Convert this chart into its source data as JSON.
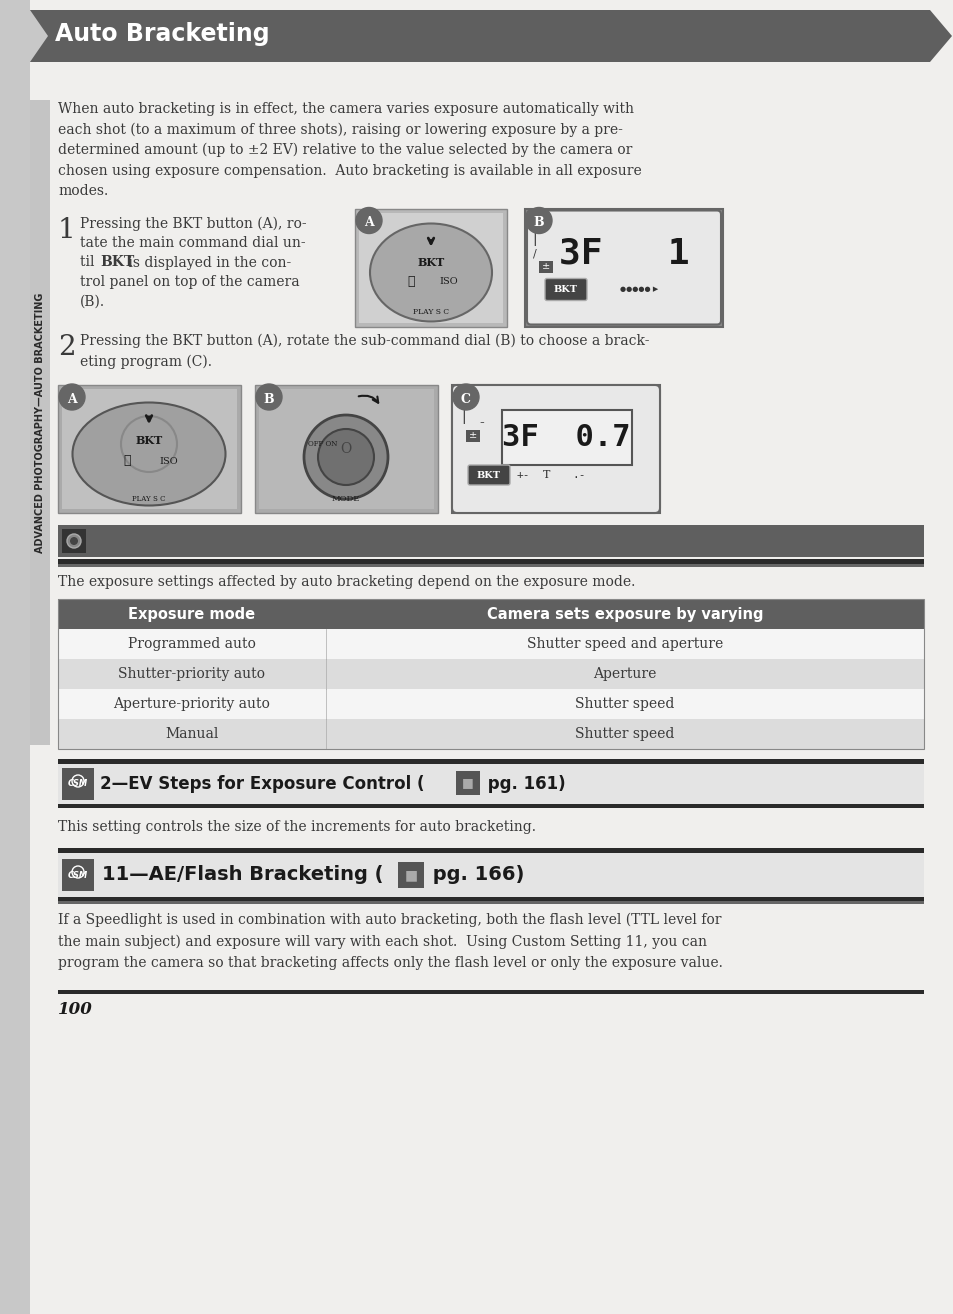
{
  "bg_color": "#c8c8c8",
  "page_bg": "#f0efed",
  "title_text": "Auto Bracketing",
  "title_bg": "#5f5f5f",
  "title_text_color": "#ffffff",
  "sidebar_text": "ADVANCED PHOTOGRAPHY—AUTO BRACKETING",
  "sidebar_bg": "#c0c0c0",
  "body_text_color": "#3a3a3a",
  "intro_lines": [
    "When auto bracketing is in effect, the camera varies exposure automatically with",
    "each shot (to a maximum of three shots), raising or lowering exposure by a pre-",
    "determined amount (up to ±2 EV) relative to the value selected by the camera or",
    "chosen using exposure compensation.  Auto bracketing is available in all exposure",
    "modes."
  ],
  "step1_lines": [
    "Pressing the BKT button (A), ro-",
    "tate the main command dial un-",
    "til ",
    " is displayed in the con-",
    "trol panel on top of the camera",
    "(B)."
  ],
  "step2_line1": "Pressing the BKT button (A), rotate the sub-command dial (B) to choose a brack-",
  "step2_line2": "eting program (C).",
  "table_header": [
    "Exposure mode",
    "Camera sets exposure by varying"
  ],
  "table_header_bg": "#5f5f5f",
  "table_header_color": "#ffffff",
  "table_rows": [
    [
      "Programmed auto",
      "Shutter speed and aperture"
    ],
    [
      "Shutter-priority auto",
      "Aperture"
    ],
    [
      "Aperture-priority auto",
      "Shutter speed"
    ],
    [
      "Manual",
      "Shutter speed"
    ]
  ],
  "table_row_colors": [
    "#f5f5f5",
    "#dcdcdc",
    "#f5f5f5",
    "#dcdcdc"
  ],
  "table_text_color": "#3a3a3a",
  "table_intro": "The exposure settings affected by auto bracketing depend on the exposure mode.",
  "sec1_title": "2—EV Steps for Exposure Control (",
  "sec1_title2": " pg. 161)",
  "sec1_text": "This setting controls the size of the increments for auto bracketing.",
  "sec2_title": "11—AE/Flash Bracketing (",
  "sec2_title2": " pg. 166)",
  "sec2_lines": [
    "If a Speedlight is used in combination with auto bracketing, both the flash level (TTL level for",
    "the main subject) and exposure will vary with each shot.  Using Custom Setting 11, you can",
    "program the camera so that bracketing affects only the flash level or only the exposure value."
  ],
  "dark_bar_color": "#2a2a2a",
  "medium_bar_color": "#5f5f5f",
  "note_icon_color": "#555555",
  "page_number": "100"
}
